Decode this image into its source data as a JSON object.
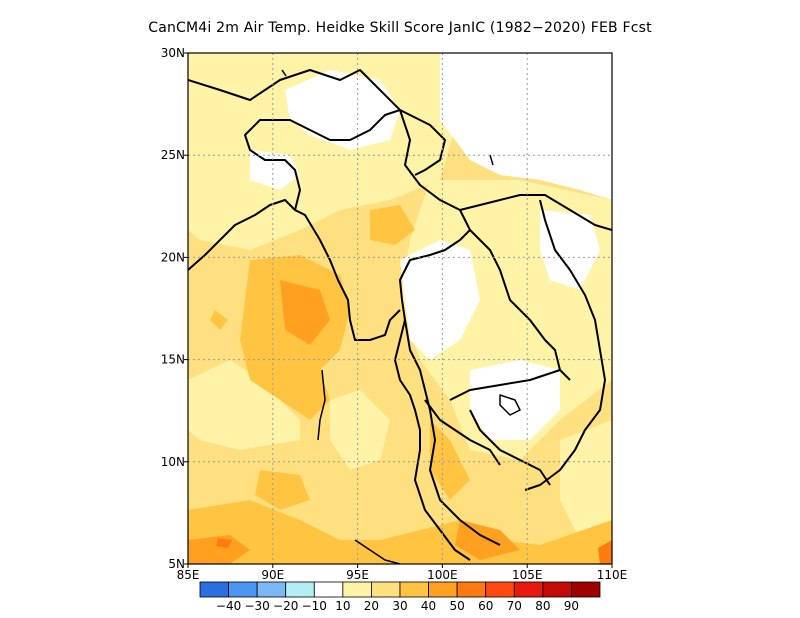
{
  "title": "CanCM4i  2m Air Temp. Heidke Skill Score JanIC (1982−2020) FEB Fcst",
  "map": {
    "lon_range": [
      85,
      110
    ],
    "lat_range": [
      5,
      30
    ],
    "lon_ticks": [
      {
        "value": 85,
        "label": "85E"
      },
      {
        "value": 90,
        "label": "90E"
      },
      {
        "value": 95,
        "label": "95E"
      },
      {
        "value": 100,
        "label": "100E"
      },
      {
        "value": 105,
        "label": "105E"
      },
      {
        "value": 110,
        "label": "110E"
      }
    ],
    "lat_ticks": [
      {
        "value": 5,
        "label": "5N"
      },
      {
        "value": 10,
        "label": "10N"
      },
      {
        "value": 15,
        "label": "15N"
      },
      {
        "value": 20,
        "label": "20N"
      },
      {
        "value": 25,
        "label": "25N"
      },
      {
        "value": 30,
        "label": "30N"
      }
    ],
    "grid": "dotted"
  },
  "colorbar": {
    "colors": [
      "#2a6fe0",
      "#4a96f0",
      "#7cb8f5",
      "#b4eef5",
      "#ffffff",
      "#fff3a8",
      "#ffe080",
      "#ffc542",
      "#ffa020",
      "#ff7a12",
      "#ff4a12",
      "#e81a10",
      "#c40a08",
      "#a00000"
    ],
    "labels": [
      "−40",
      "−30",
      "−20",
      "−10",
      "10",
      "20",
      "30",
      "40",
      "50",
      "60",
      "70",
      "80",
      "90"
    ]
  }
}
